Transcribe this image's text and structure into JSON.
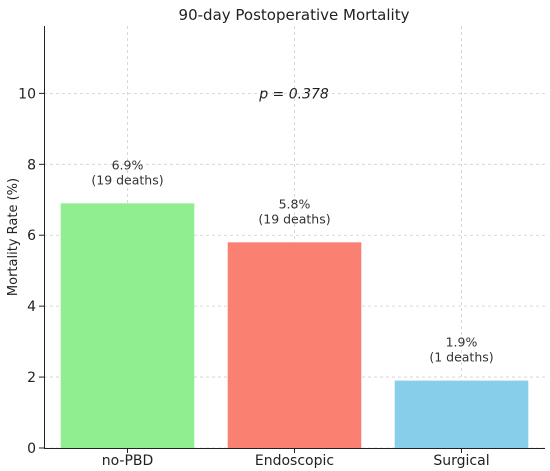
{
  "chart_data": {
    "type": "bar",
    "title": "90-day Postoperative Mortality",
    "xlabel": "",
    "ylabel": "Mortality Rate (%)",
    "categories": [
      "no-PBD",
      "Endoscopic",
      "Surgical"
    ],
    "values": [
      6.9,
      5.8,
      1.9
    ],
    "colors": [
      "#90ee90",
      "#fa8072",
      "#87ceeb"
    ],
    "bar_labels": [
      [
        "6.9%",
        "(19 deaths)"
      ],
      [
        "5.8%",
        "(19 deaths)"
      ],
      [
        "1.9%",
        "(1 deaths)"
      ]
    ],
    "annotation": "p = 0.378",
    "annotation_y": 10,
    "ylim": [
      0,
      11.9
    ],
    "yticks": [
      0,
      2,
      4,
      6,
      8,
      10
    ],
    "grid": true
  }
}
